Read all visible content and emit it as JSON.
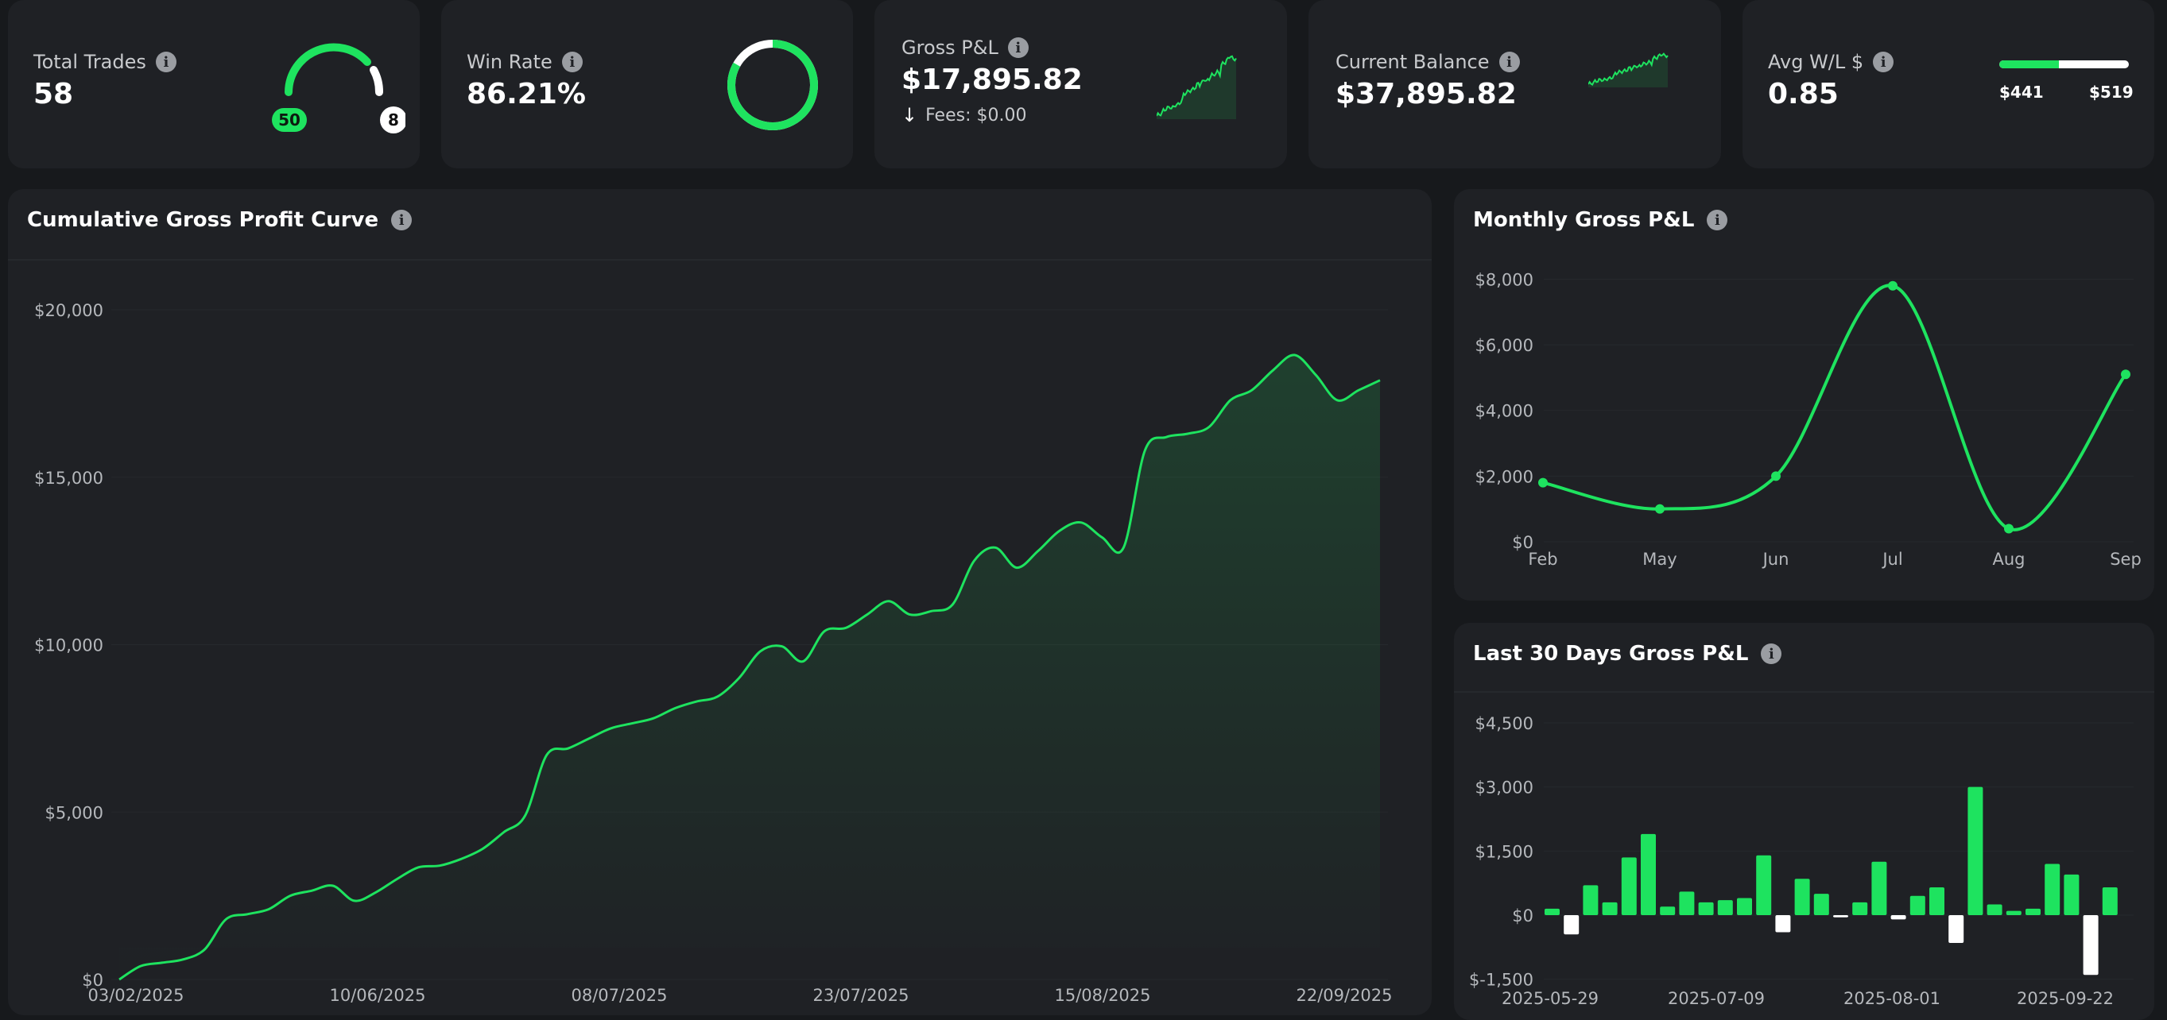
{
  "kpis": {
    "total_trades": {
      "label": "Total Trades",
      "value": "58",
      "wins": "50",
      "losses": "8"
    },
    "win_rate": {
      "label": "Win Rate",
      "value": "86.21%",
      "fraction": 0.8621
    },
    "gross_pnl": {
      "label": "Gross P&L",
      "value": "$17,895.82",
      "fees": "Fees: $0.00"
    },
    "current_balance": {
      "label": "Current Balance",
      "value": "$37,895.82"
    },
    "avg_wl": {
      "label": "Avg W/L $",
      "value": "0.85",
      "avg_win": "$441",
      "avg_loss": "$519",
      "win_share": 0.46
    }
  },
  "cumulative": {
    "title": "Cumulative Gross Profit Curve"
  },
  "monthly": {
    "title": "Monthly Gross P&L"
  },
  "last30": {
    "title": "Last 30 Days Gross P&L"
  },
  "colors": {
    "accent": "#1ee35f",
    "negative": "#ffffff",
    "card": "#1f2125",
    "background": "#17191c"
  },
  "icons": [
    "info-icon",
    "arrow-down-icon"
  ],
  "chart_data": [
    {
      "type": "area",
      "title": "Cumulative Gross Profit Curve",
      "x_ticks": [
        "03/02/2025",
        "10/06/2025",
        "08/07/2025",
        "23/07/2025",
        "15/08/2025",
        "22/09/2025"
      ],
      "y_ticks": [
        "$0",
        "$5,000",
        "$10,000",
        "$15,000",
        "$20,000"
      ],
      "ylim": [
        0,
        20000
      ],
      "values": [
        0,
        400,
        500,
        600,
        900,
        1800,
        1950,
        2100,
        2500,
        2650,
        2800,
        2350,
        2600,
        3000,
        3350,
        3400,
        3600,
        3900,
        4400,
        4900,
        6700,
        6900,
        7200,
        7500,
        7650,
        7800,
        8100,
        8300,
        8450,
        9000,
        9800,
        9950,
        9500,
        10400,
        10500,
        10900,
        11300,
        10900,
        11000,
        11200,
        12500,
        12900,
        12300,
        12800,
        13400,
        13650,
        13200,
        12900,
        15800,
        16200,
        16300,
        16500,
        17300,
        17600,
        18200,
        18650,
        18050,
        17300,
        17600,
        17895.82
      ],
      "grid": true
    },
    {
      "type": "line",
      "title": "Monthly Gross P&L",
      "categories": [
        "Feb",
        "May",
        "Jun",
        "Jul",
        "Aug",
        "Sep"
      ],
      "values": [
        1800,
        1000,
        2000,
        7800,
        400,
        5100
      ],
      "y_ticks": [
        "$0",
        "$2,000",
        "$4,000",
        "$6,000",
        "$8,000"
      ],
      "ylim": [
        0,
        8300
      ]
    },
    {
      "type": "bar",
      "title": "Last 30 Days Gross P&L",
      "x_ticks": [
        "2025-05-29",
        "2025-07-09",
        "2025-08-01",
        "2025-09-22"
      ],
      "values": [
        150,
        -450,
        700,
        300,
        1350,
        1900,
        200,
        550,
        300,
        350,
        400,
        1400,
        -400,
        850,
        500,
        -50,
        300,
        1250,
        -100,
        450,
        650,
        -650,
        3000,
        250,
        100,
        150,
        1200,
        950,
        -1400,
        650
      ],
      "y_ticks": [
        "$-1,500",
        "$0",
        "$1,500",
        "$3,000",
        "$4,500"
      ],
      "ylim": [
        -1500,
        4500
      ]
    }
  ]
}
